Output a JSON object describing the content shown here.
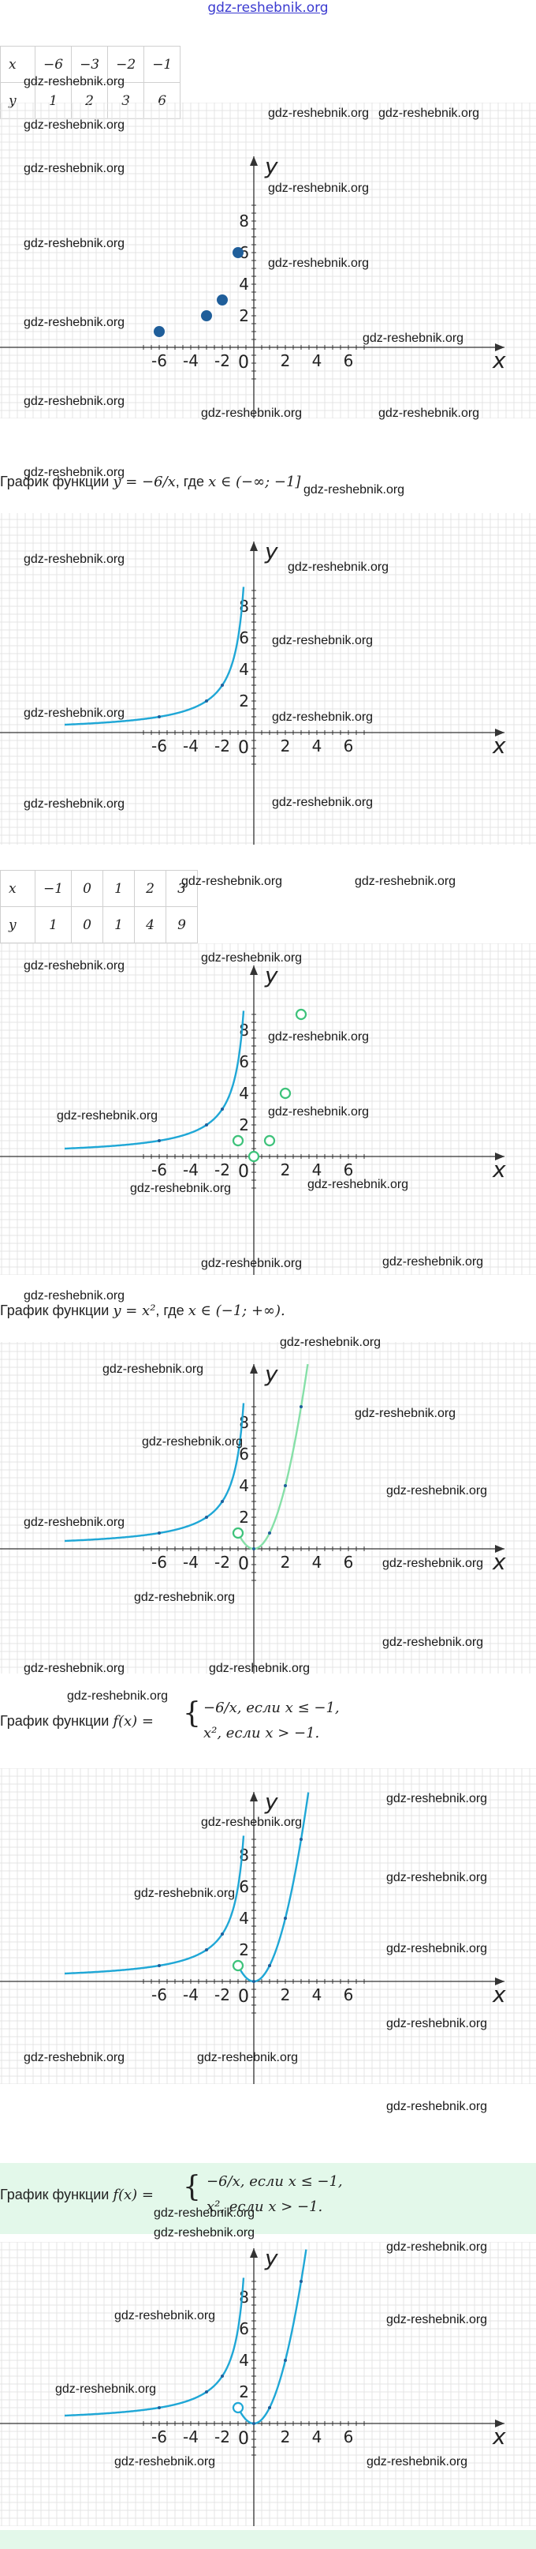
{
  "site": {
    "title": "gdz-reshebnik.org"
  },
  "watermark": "gdz-reshebnik.org",
  "table1": {
    "x_label": "x",
    "y_label": "y",
    "x": [
      "−6",
      "−3",
      "−2",
      "−1"
    ],
    "y": [
      "1",
      "2",
      "3",
      "6"
    ]
  },
  "table2": {
    "x_label": "x",
    "y_label": "y",
    "x": [
      "−1",
      "0",
      "1",
      "2",
      "3"
    ],
    "y": [
      "1",
      "0",
      "1",
      "4",
      "9"
    ]
  },
  "captions": {
    "c1_prefix": "График функции ",
    "c1_math": "y = −6/x",
    "c1_mid": ", где ",
    "c1_domain": "x ∈ (−∞; −1]",
    "c2_prefix": "График функции ",
    "c2_math": "y = x²",
    "c2_mid": ", где ",
    "c2_domain": "x ∈ (−1; +∞).",
    "c3_prefix": "График функции ",
    "c3_math": "f(x) =",
    "piece1": "−6/x, если x ≤ −1,",
    "piece2": "x², если x > −1."
  },
  "axes": {
    "x_label": "x",
    "y_label": "y",
    "origin": "0",
    "x_ticks": [
      "-6",
      "-4",
      "-2",
      "2",
      "4",
      "6"
    ],
    "y_ticks": [
      "2",
      "4",
      "6",
      "8"
    ]
  },
  "colors": {
    "hyperbola": "#1fa7d6",
    "parabola_light": "#86e0a8",
    "parabola_dark": "#1fa7d6",
    "point_dark": "#1f5e9a",
    "point_light": "#3dc27a",
    "highlight": "#e3f8ea"
  },
  "chart_data": [
    {
      "type": "scatter",
      "series": [
        {
          "x": [
            -6,
            -3,
            -2,
            -1
          ],
          "y": [
            1,
            2,
            3,
            6
          ]
        }
      ]
    },
    {
      "type": "line",
      "series": [
        {
          "function": "y=-6/x",
          "domain": "(-inf;-1]"
        }
      ]
    },
    {
      "type": "scatter",
      "series": [
        {
          "function": "y=-6/x",
          "domain": "(-inf;-1]"
        },
        {
          "x": [
            -1,
            0,
            1,
            2,
            3
          ],
          "y": [
            1,
            0,
            1,
            4,
            9
          ]
        }
      ]
    },
    {
      "type": "line",
      "series": [
        {
          "function": "y=-6/x",
          "domain": "(-inf;-1]"
        },
        {
          "function": "y=x^2",
          "domain": "(-1;+inf)"
        }
      ]
    },
    {
      "type": "line",
      "series": [
        {
          "function": "f(x) piecewise"
        }
      ]
    },
    {
      "type": "line",
      "series": [
        {
          "function": "f(x) piecewise"
        }
      ]
    }
  ]
}
